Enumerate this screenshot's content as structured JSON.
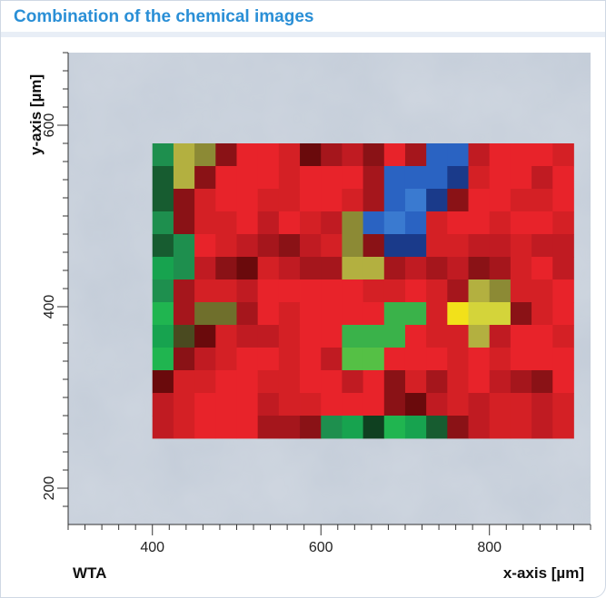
{
  "header": {
    "title": "Combination of the chemical images"
  },
  "footer": {
    "method": "WTA"
  },
  "chart_data": {
    "type": "heatmap",
    "title": "Combination of the chemical images",
    "xlabel": "x-axis [µm]",
    "ylabel": "y-axis [µm]",
    "xlim": [
      300,
      920
    ],
    "ylim": [
      160,
      680
    ],
    "x_ticks": [
      400,
      600,
      800
    ],
    "y_ticks": [
      200,
      400,
      600
    ],
    "grid": false,
    "background": "optical microscope image (grey-blue)",
    "x_start": 400,
    "y_start": 580,
    "cell_size": 25,
    "palette": {
      "R1": "#e8232a",
      "R2": "#d42025",
      "R3": "#c01b22",
      "R4": "#a5161c",
      "R5": "#8a1216",
      "R6": "#6a0a0c",
      "G1": "#1e8f4e",
      "G2": "#17a34f",
      "G3": "#20b550",
      "G4": "#175c30",
      "G5": "#0f4020",
      "L1": "#3ab24a",
      "L2": "#55c045",
      "B1": "#2a63c2",
      "B2": "#1e4ea8",
      "B3": "#3a7ad0",
      "B4": "#1a3a8a",
      "Y1": "#f2e11a",
      "Y2": "#d4d43a",
      "Y3": "#b3b040",
      "O1": "#8c8a35",
      "O2": "#6f6f2c",
      "O3": "#4a4a20"
    },
    "rows": [
      [
        "G1",
        "Y3",
        "O1",
        "R5",
        "R1",
        "R1",
        "R2",
        "R6",
        "R4",
        "R3",
        "R5",
        "R1",
        "R4",
        "B1",
        "B1",
        "R3",
        "R1",
        "R1",
        "R1",
        "R2"
      ],
      [
        "G4",
        "Y3",
        "R5",
        "R1",
        "R1",
        "R1",
        "R2",
        "R1",
        "R1",
        "R1",
        "R4",
        "B1",
        "B1",
        "B1",
        "B4",
        "R2",
        "R1",
        "R1",
        "R3",
        "R1"
      ],
      [
        "G4",
        "R5",
        "R2",
        "R1",
        "R1",
        "R2",
        "R2",
        "R1",
        "R1",
        "R2",
        "R4",
        "B1",
        "B3",
        "B4",
        "R5",
        "R1",
        "R1",
        "R2",
        "R2",
        "R1"
      ],
      [
        "G1",
        "R5",
        "R2",
        "R2",
        "R1",
        "R3",
        "R1",
        "R2",
        "R3",
        "O1",
        "B1",
        "B3",
        "B1",
        "R2",
        "R1",
        "R1",
        "R2",
        "R1",
        "R1",
        "R2"
      ],
      [
        "G4",
        "G1",
        "R1",
        "R2",
        "R3",
        "R4",
        "R5",
        "R3",
        "R2",
        "O1",
        "R5",
        "B4",
        "B4",
        "R2",
        "R2",
        "R3",
        "R3",
        "R2",
        "R3",
        "R3"
      ],
      [
        "G2",
        "G1",
        "R3",
        "R5",
        "R6",
        "R2",
        "R3",
        "R4",
        "R4",
        "Y3",
        "Y3",
        "R4",
        "R3",
        "R4",
        "R3",
        "R5",
        "R4",
        "R2",
        "R1",
        "R3"
      ],
      [
        "G1",
        "R4",
        "R2",
        "R2",
        "R3",
        "R1",
        "R1",
        "R1",
        "R1",
        "R1",
        "R2",
        "R2",
        "R1",
        "R2",
        "R4",
        "Y3",
        "O1",
        "R2",
        "R2",
        "R1"
      ],
      [
        "G3",
        "R4",
        "O2",
        "O2",
        "R4",
        "R1",
        "R2",
        "R1",
        "R1",
        "R1",
        "R1",
        "L1",
        "L1",
        "R2",
        "Y1",
        "Y2",
        "Y2",
        "R5",
        "R2",
        "R1"
      ],
      [
        "G2",
        "O3",
        "R6",
        "R2",
        "R3",
        "R3",
        "R2",
        "R1",
        "R1",
        "L1",
        "L1",
        "L1",
        "R1",
        "R2",
        "R2",
        "Y3",
        "R3",
        "R1",
        "R1",
        "R2"
      ],
      [
        "G3",
        "R5",
        "R3",
        "R2",
        "R1",
        "R1",
        "R2",
        "R1",
        "R3",
        "L2",
        "L2",
        "R1",
        "R1",
        "R1",
        "R2",
        "R1",
        "R2",
        "R1",
        "R1",
        "R1"
      ],
      [
        "R6",
        "R2",
        "R2",
        "R1",
        "R1",
        "R2",
        "R2",
        "R1",
        "R1",
        "R3",
        "R1",
        "R5",
        "R2",
        "R4",
        "R2",
        "R1",
        "R3",
        "R4",
        "R5",
        "R1"
      ],
      [
        "R3",
        "R2",
        "R1",
        "R1",
        "R1",
        "R3",
        "R2",
        "R2",
        "R1",
        "R1",
        "R1",
        "R5",
        "R6",
        "R3",
        "R2",
        "R3",
        "R2",
        "R2",
        "R3",
        "R2"
      ],
      [
        "R3",
        "R2",
        "R1",
        "R1",
        "R1",
        "R4",
        "R4",
        "R5",
        "G1",
        "G2",
        "G5",
        "G3",
        "G2",
        "G4",
        "R5",
        "R3",
        "R2",
        "R2",
        "R3",
        "R2"
      ]
    ]
  }
}
